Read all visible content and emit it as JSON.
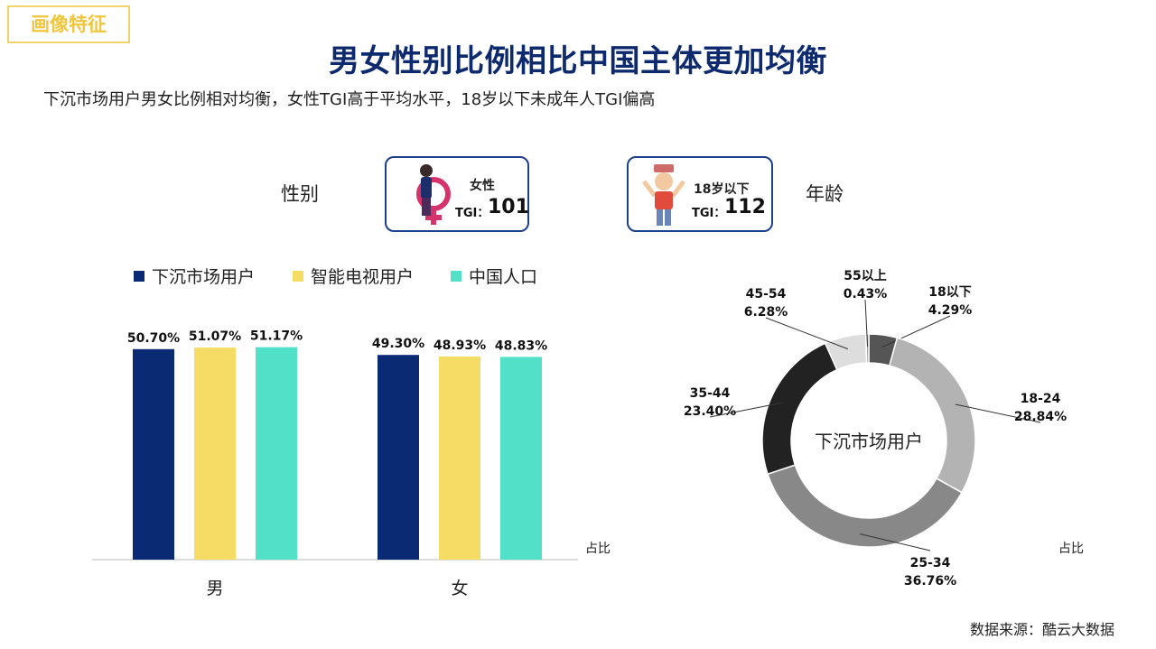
{
  "tag": "画像特征",
  "title": "男女性别比例相比中国主体更加均衡",
  "subtitle": "下沉市场用户男女比例相对均衡，女性TGI高于平均水平，18岁以下未成年人TGI偏高",
  "gender_label": "性别",
  "age_label": "年龄",
  "card_female": {
    "category": "女性",
    "tgi_label": "TGI：",
    "tgi_value": "101"
  },
  "card_youth": {
    "category": "18岁以下",
    "tgi_label": "TGI：",
    "tgi_value": "112"
  },
  "unit_left": "占比",
  "unit_right": "占比",
  "source": "数据来源：酷云大数据",
  "donut_center_label": "下沉市场用户",
  "chart_data": [
    {
      "type": "bar",
      "categories": [
        "男",
        "女"
      ],
      "series": [
        {
          "name": "下沉市场用户",
          "color": "#0b2a74",
          "values": [
            50.7,
            49.3
          ]
        },
        {
          "name": "智能电视用户",
          "color": "#f5dc65",
          "values": [
            51.07,
            48.93
          ]
        },
        {
          "name": "中国人口",
          "color": "#53e0c8",
          "values": [
            51.17,
            48.83
          ]
        }
      ],
      "value_format": "%",
      "ylim": [
        0,
        60
      ]
    },
    {
      "type": "pie",
      "donut": true,
      "slices": [
        {
          "label": "18以下",
          "value": 4.29,
          "color": "#555555"
        },
        {
          "label": "18-24",
          "value": 28.84,
          "color": "#b3b3b3"
        },
        {
          "label": "25-34",
          "value": 36.76,
          "color": "#888888"
        },
        {
          "label": "35-44",
          "value": 23.4,
          "color": "#222222"
        },
        {
          "label": "45-54",
          "value": 6.28,
          "color": "#dddddd"
        },
        {
          "label": "55以上",
          "value": 0.43,
          "color": "#9a9a9a"
        }
      ],
      "value_format": "%"
    }
  ]
}
